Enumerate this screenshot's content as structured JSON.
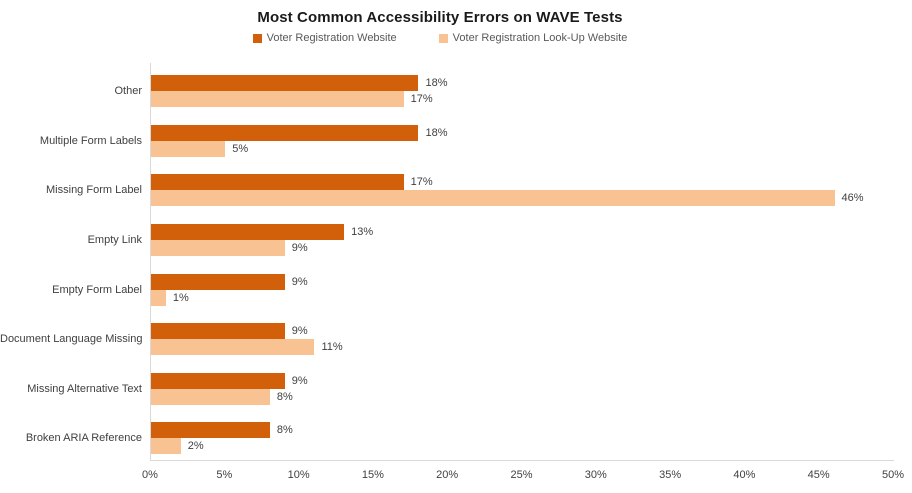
{
  "chart_data": {
    "type": "bar",
    "orientation": "horizontal",
    "title": "Most Common Accessibility Errors on WAVE Tests",
    "categories": [
      "Other",
      "Multiple Form Labels",
      "Missing Form Label",
      "Empty Link",
      "Empty Form Label",
      "Document Language Missing",
      "Missing Alternative Text",
      "Broken ARIA Reference"
    ],
    "series": [
      {
        "name": "Voter Registration Website",
        "color": "#D2600A",
        "values": [
          18,
          18,
          17,
          13,
          9,
          9,
          9,
          8
        ]
      },
      {
        "name": "Voter Registration Look-Up Website",
        "color": "#F9C292",
        "values": [
          17,
          5,
          46,
          9,
          1,
          11,
          8,
          2
        ]
      }
    ],
    "value_label_suffix": "%",
    "xlim": [
      0,
      50
    ],
    "x_ticks": [
      "0%",
      "5%",
      "10%",
      "15%",
      "20%",
      "25%",
      "30%",
      "35%",
      "40%",
      "45%",
      "50%"
    ],
    "grid": "off",
    "legend_position": "top",
    "axis_color": "#D9D9D9",
    "label_color": "#404040",
    "legend_text_color": "#595959"
  }
}
